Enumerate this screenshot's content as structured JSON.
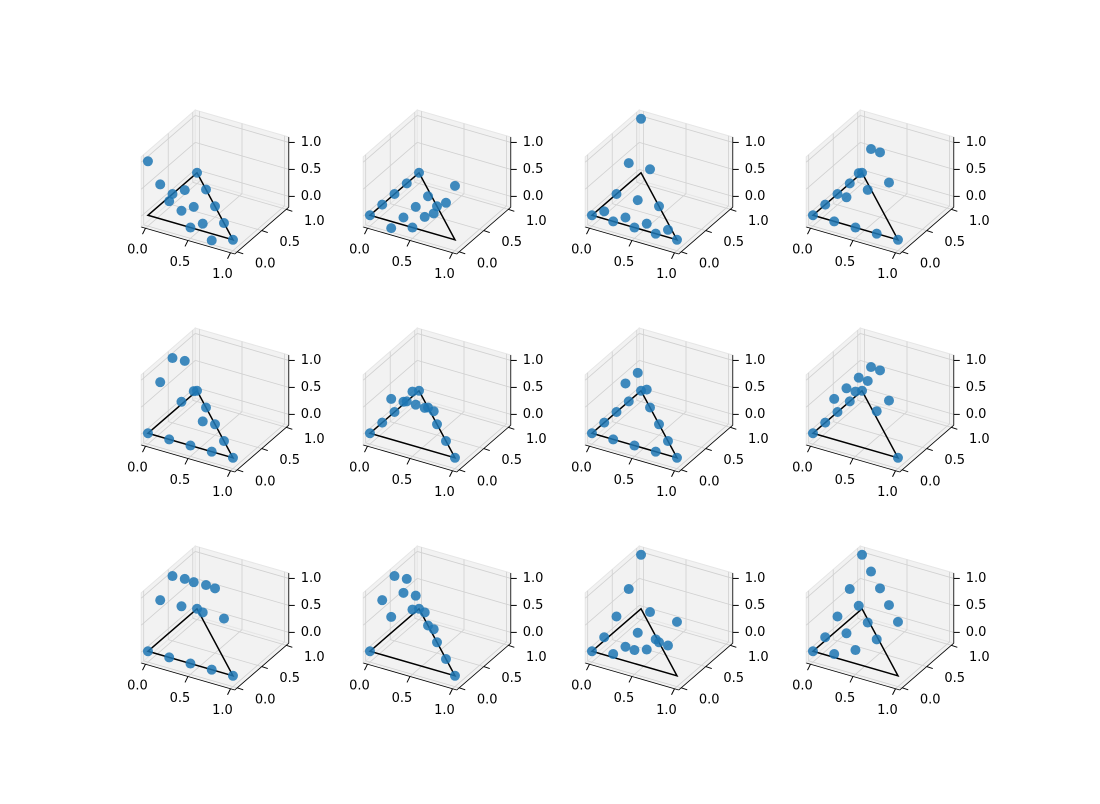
{
  "chart_data": [
    {
      "type": "scatter3d",
      "color": "#1f77b4",
      "x": [
        0,
        0.25,
        0.5,
        0.75,
        1,
        0,
        0.25,
        0.5,
        0.75,
        0,
        0.25,
        0.5,
        0,
        0.25,
        0
      ],
      "y": [
        0,
        0,
        0,
        0,
        0,
        0.25,
        0.25,
        0.25,
        0.25,
        0.5,
        0.5,
        0.5,
        0.75,
        0.75,
        1
      ],
      "z": [
        1,
        0.375,
        0,
        -0.125,
        0,
        0.375,
        0,
        -0.125,
        0,
        0,
        -0.125,
        0,
        -0.125,
        0,
        0
      ],
      "xlim": [
        -0.05,
        1.05
      ],
      "ylim": [
        -0.05,
        1.05
      ],
      "zlim": [
        -0.2,
        1.1
      ],
      "xticks": [
        {
          "value": 0,
          "label": "0.0"
        },
        {
          "value": 0.5,
          "label": "0.5"
        },
        {
          "value": 1,
          "label": "1.0"
        }
      ],
      "yticks": [
        {
          "value": 0,
          "label": "0.0"
        },
        {
          "value": 0.5,
          "label": "0.5"
        },
        {
          "value": 1,
          "label": "1.0"
        }
      ],
      "zticks": [
        {
          "value": 0,
          "label": "0.0"
        },
        {
          "value": 0.5,
          "label": "0.5"
        },
        {
          "value": 1,
          "label": "1.0"
        }
      ]
    },
    {
      "type": "scatter3d",
      "color": "#1f77b4",
      "x": [
        0,
        0.25,
        0.5,
        0.75,
        1,
        0,
        0.25,
        0.5,
        0.75,
        0,
        0.25,
        0.5,
        0,
        0.25,
        0
      ],
      "y": [
        0,
        0,
        0,
        0,
        0,
        0.25,
        0.25,
        0.25,
        0.25,
        0.5,
        0.5,
        0.5,
        0.75,
        0.75,
        1
      ],
      "z": [
        0,
        -0.125,
        0,
        0.375,
        1,
        0,
        -0.125,
        0,
        0.375,
        0,
        -0.125,
        0,
        0,
        -0.125,
        0
      ],
      "xlim": [
        -0.05,
        1.05
      ],
      "ylim": [
        -0.05,
        1.05
      ],
      "zlim": [
        -0.2,
        1.1
      ],
      "xticks": [
        {
          "value": 0,
          "label": "0.0"
        },
        {
          "value": 0.5,
          "label": "0.5"
        },
        {
          "value": 1,
          "label": "1.0"
        }
      ],
      "yticks": [
        {
          "value": 0,
          "label": "0.0"
        },
        {
          "value": 0.5,
          "label": "0.5"
        },
        {
          "value": 1,
          "label": "1.0"
        }
      ],
      "zticks": [
        {
          "value": 0,
          "label": "0.0"
        },
        {
          "value": 0.5,
          "label": "0.5"
        },
        {
          "value": 1,
          "label": "1.0"
        }
      ]
    },
    {
      "type": "scatter3d",
      "color": "#1f77b4",
      "x": [
        0,
        0.25,
        0.5,
        0.75,
        1,
        0,
        0.25,
        0.5,
        0.75,
        0,
        0.25,
        0.5,
        0,
        0.25,
        0
      ],
      "y": [
        0,
        0,
        0,
        0,
        0,
        0.25,
        0.25,
        0.25,
        0.25,
        0.5,
        0.5,
        0.5,
        0.75,
        0.75,
        1
      ],
      "z": [
        0,
        0,
        0,
        0,
        0,
        -0.125,
        -0.125,
        -0.125,
        -0.125,
        0,
        0,
        0,
        0.375,
        0.375,
        1
      ],
      "xlim": [
        -0.05,
        1.05
      ],
      "ylim": [
        -0.05,
        1.05
      ],
      "zlim": [
        -0.2,
        1.1
      ],
      "xticks": [
        {
          "value": 0,
          "label": "0.0"
        },
        {
          "value": 0.5,
          "label": "0.5"
        },
        {
          "value": 1,
          "label": "1.0"
        }
      ],
      "yticks": [
        {
          "value": 0,
          "label": "0.0"
        },
        {
          "value": 0.5,
          "label": "0.5"
        },
        {
          "value": 1,
          "label": "1.0"
        }
      ],
      "zticks": [
        {
          "value": 0,
          "label": "0.0"
        },
        {
          "value": 0.5,
          "label": "0.5"
        },
        {
          "value": 1,
          "label": "1.0"
        }
      ]
    },
    {
      "type": "scatter3d",
      "color": "#1f77b4",
      "x": [
        0,
        0.25,
        0.5,
        0.75,
        1,
        0,
        0.25,
        0.5,
        0.75,
        0,
        0.25,
        0.5,
        0,
        0.25,
        0
      ],
      "y": [
        0,
        0,
        0,
        0,
        0,
        0.25,
        0.25,
        0.25,
        0.25,
        0.5,
        0.5,
        0.5,
        0.75,
        0.75,
        1
      ],
      "z": [
        0,
        0,
        0,
        0,
        0,
        0,
        0.25,
        0.5,
        0.75,
        0,
        0.5,
        1,
        0,
        0.75,
        0
      ],
      "xlim": [
        -0.05,
        1.05
      ],
      "ylim": [
        -0.05,
        1.05
      ],
      "zlim": [
        -0.2,
        1.1
      ],
      "xticks": [
        {
          "value": 0,
          "label": "0.0"
        },
        {
          "value": 0.5,
          "label": "0.5"
        },
        {
          "value": 1,
          "label": "1.0"
        }
      ],
      "yticks": [
        {
          "value": 0,
          "label": "0.0"
        },
        {
          "value": 0.5,
          "label": "0.5"
        },
        {
          "value": 1,
          "label": "1.0"
        }
      ],
      "zticks": [
        {
          "value": 0,
          "label": "0.0"
        },
        {
          "value": 0.5,
          "label": "0.5"
        },
        {
          "value": 1,
          "label": "1.0"
        }
      ]
    },
    {
      "type": "scatter3d",
      "color": "#1f77b4",
      "x": [
        0,
        0.25,
        0.5,
        0.75,
        1,
        0,
        0.25,
        0.5,
        0.75,
        0,
        0.25,
        0.5,
        0,
        0.25,
        0
      ],
      "y": [
        0,
        0,
        0,
        0,
        0,
        0.25,
        0.25,
        0.25,
        0.25,
        0.5,
        0.5,
        0.5,
        0.75,
        0.75,
        1
      ],
      "z": [
        0,
        0,
        0,
        0,
        0,
        0.75,
        0.5,
        0.25,
        0,
        1,
        0.5,
        0,
        0.75,
        0,
        0
      ],
      "xlim": [
        -0.05,
        1.05
      ],
      "ylim": [
        -0.05,
        1.05
      ],
      "zlim": [
        -0.2,
        1.1
      ],
      "xticks": [
        {
          "value": 0,
          "label": "0.0"
        },
        {
          "value": 0.5,
          "label": "0.5"
        },
        {
          "value": 1,
          "label": "1.0"
        }
      ],
      "yticks": [
        {
          "value": 0,
          "label": "0.0"
        },
        {
          "value": 0.5,
          "label": "0.5"
        },
        {
          "value": 1,
          "label": "1.0"
        }
      ],
      "zticks": [
        {
          "value": 0,
          "label": "0.0"
        },
        {
          "value": 0.5,
          "label": "0.5"
        },
        {
          "value": 1,
          "label": "1.0"
        }
      ]
    },
    {
      "type": "scatter3d",
      "color": "#1f77b4",
      "x": [
        0,
        0.25,
        0.5,
        0.75,
        1,
        0,
        0.25,
        0.5,
        0.75,
        0,
        0.25,
        0.5,
        0,
        0.25,
        0
      ],
      "y": [
        0,
        0,
        0,
        0,
        0,
        0.25,
        0.25,
        0.25,
        0.25,
        0.5,
        0.5,
        0.5,
        0.75,
        0.75,
        1
      ],
      "z": [
        0,
        0.75,
        1,
        0.75,
        0,
        0,
        0.5,
        0.5,
        0,
        0,
        0.25,
        0,
        0,
        0,
        0
      ],
      "xlim": [
        -0.05,
        1.05
      ],
      "ylim": [
        -0.05,
        1.05
      ],
      "zlim": [
        -0.2,
        1.1
      ],
      "xticks": [
        {
          "value": 0,
          "label": "0.0"
        },
        {
          "value": 0.5,
          "label": "0.5"
        },
        {
          "value": 1,
          "label": "1.0"
        }
      ],
      "yticks": [
        {
          "value": 0,
          "label": "0.0"
        },
        {
          "value": 0.5,
          "label": "0.5"
        },
        {
          "value": 1,
          "label": "1.0"
        }
      ],
      "zticks": [
        {
          "value": 0,
          "label": "0.0"
        },
        {
          "value": 0.5,
          "label": "0.5"
        },
        {
          "value": 1,
          "label": "1.0"
        }
      ]
    },
    {
      "type": "scatter3d",
      "color": "#1f77b4",
      "x": [
        0,
        0.25,
        0.5,
        0.75,
        1,
        0,
        0.25,
        0.5,
        0.75,
        0,
        0.25,
        0.5,
        0,
        0.25,
        0
      ],
      "y": [
        0,
        0,
        0,
        0,
        0,
        0.25,
        0.25,
        0.25,
        0.25,
        0.5,
        0.5,
        0.5,
        0.75,
        0.75,
        1
      ],
      "z": [
        0,
        0,
        0,
        0,
        0,
        0,
        0.84,
        0.84,
        0,
        0,
        0.84,
        0,
        0,
        0,
        0
      ],
      "xlim": [
        -0.05,
        1.05
      ],
      "ylim": [
        -0.05,
        1.05
      ],
      "zlim": [
        -0.2,
        1.1
      ],
      "xticks": [
        {
          "value": 0,
          "label": "0.0"
        },
        {
          "value": 0.5,
          "label": "0.5"
        },
        {
          "value": 1,
          "label": "1.0"
        }
      ],
      "yticks": [
        {
          "value": 0,
          "label": "0.0"
        },
        {
          "value": 0.5,
          "label": "0.5"
        },
        {
          "value": 1,
          "label": "1.0"
        }
      ],
      "zticks": [
        {
          "value": 0,
          "label": "0.0"
        },
        {
          "value": 0.5,
          "label": "0.5"
        },
        {
          "value": 1,
          "label": "1.0"
        }
      ]
    },
    {
      "type": "scatter3d",
      "color": "#1f77b4",
      "x": [
        0,
        0.25,
        0.5,
        0.75,
        1,
        0,
        0.25,
        0.5,
        0.75,
        0,
        0.25,
        0.5,
        0,
        0.25,
        0
      ],
      "y": [
        0,
        0,
        0,
        0,
        0,
        0.25,
        0.25,
        0.25,
        0.25,
        0.5,
        0.5,
        0.5,
        0.75,
        0.75,
        1
      ],
      "z": [
        0,
        0.75,
        1,
        0.75,
        0,
        0,
        0.75,
        1,
        0.75,
        0,
        0.75,
        1,
        0,
        0.75,
        0
      ],
      "xlim": [
        -0.05,
        1.05
      ],
      "ylim": [
        -0.05,
        1.05
      ],
      "zlim": [
        -0.2,
        1.1
      ],
      "xticks": [
        {
          "value": 0,
          "label": "0.0"
        },
        {
          "value": 0.5,
          "label": "0.5"
        },
        {
          "value": 1,
          "label": "1.0"
        }
      ],
      "yticks": [
        {
          "value": 0,
          "label": "0.0"
        },
        {
          "value": 0.5,
          "label": "0.5"
        },
        {
          "value": 1,
          "label": "1.0"
        }
      ],
      "zticks": [
        {
          "value": 0,
          "label": "0.0"
        },
        {
          "value": 0.5,
          "label": "0.5"
        },
        {
          "value": 1,
          "label": "1.0"
        }
      ]
    },
    {
      "type": "scatter3d",
      "color": "#1f77b4",
      "x": [
        0,
        0.25,
        0.5,
        0.75,
        1,
        0,
        0.25,
        0.5,
        0.75,
        0,
        0.25,
        0.5,
        0,
        0.25,
        0
      ],
      "y": [
        0,
        0,
        0,
        0,
        0,
        0.25,
        0.25,
        0.25,
        0.25,
        0.5,
        0.5,
        0.5,
        0.75,
        0.75,
        1
      ],
      "z": [
        0,
        0,
        0,
        0,
        0,
        0.75,
        0.75,
        0.75,
        0.75,
        1,
        1,
        1,
        0.75,
        0.75,
        0
      ],
      "xlim": [
        -0.05,
        1.05
      ],
      "ylim": [
        -0.05,
        1.05
      ],
      "zlim": [
        -0.2,
        1.1
      ],
      "xticks": [
        {
          "value": 0,
          "label": "0.0"
        },
        {
          "value": 0.5,
          "label": "0.5"
        },
        {
          "value": 1,
          "label": "1.0"
        }
      ],
      "yticks": [
        {
          "value": 0,
          "label": "0.0"
        },
        {
          "value": 0.5,
          "label": "0.5"
        },
        {
          "value": 1,
          "label": "1.0"
        }
      ],
      "zticks": [
        {
          "value": 0,
          "label": "0.0"
        },
        {
          "value": 0.5,
          "label": "0.5"
        },
        {
          "value": 1,
          "label": "1.0"
        }
      ]
    },
    {
      "type": "scatter3d",
      "color": "#1f77b4",
      "x": [
        0,
        0.25,
        0.5,
        0.75,
        1,
        0,
        0.25,
        0.5,
        0.75,
        0,
        0.25,
        0.5,
        0,
        0.25,
        0
      ],
      "y": [
        0,
        0,
        0,
        0,
        0,
        0.25,
        0.25,
        0.25,
        0.25,
        0.5,
        0.5,
        0.5,
        0.75,
        0.75,
        1
      ],
      "z": [
        0,
        0.75,
        1,
        0.75,
        0,
        0.75,
        1,
        0.75,
        0,
        1,
        0.75,
        0,
        0.75,
        0,
        0
      ],
      "xlim": [
        -0.05,
        1.05
      ],
      "ylim": [
        -0.05,
        1.05
      ],
      "zlim": [
        -0.2,
        1.1
      ],
      "xticks": [
        {
          "value": 0,
          "label": "0.0"
        },
        {
          "value": 0.5,
          "label": "0.5"
        },
        {
          "value": 1,
          "label": "1.0"
        }
      ],
      "yticks": [
        {
          "value": 0,
          "label": "0.0"
        },
        {
          "value": 0.5,
          "label": "0.5"
        },
        {
          "value": 1,
          "label": "1.0"
        }
      ],
      "zticks": [
        {
          "value": 0,
          "label": "0.0"
        },
        {
          "value": 0.5,
          "label": "0.5"
        },
        {
          "value": 1,
          "label": "1.0"
        }
      ]
    },
    {
      "type": "scatter3d",
      "color": "#1f77b4",
      "x": [
        0,
        0.25,
        0.5,
        0.75,
        1,
        0,
        0.25,
        0.5,
        0.75,
        0,
        0.25,
        0.5,
        0,
        0.25,
        0
      ],
      "y": [
        0,
        0,
        0,
        0,
        0,
        0.25,
        0.25,
        0.25,
        0.25,
        0.5,
        0.5,
        0.5,
        0.75,
        0.75,
        1
      ],
      "z": [
        0,
        0.0625,
        0.25,
        0.5625,
        1,
        0.0625,
        0,
        0.0625,
        0.25,
        0.25,
        0.0625,
        0,
        0.5625,
        0.25,
        1
      ],
      "xlim": [
        -0.05,
        1.05
      ],
      "ylim": [
        -0.05,
        1.05
      ],
      "zlim": [
        -0.2,
        1.1
      ],
      "xticks": [
        {
          "value": 0,
          "label": "0.0"
        },
        {
          "value": 0.5,
          "label": "0.5"
        },
        {
          "value": 1,
          "label": "1.0"
        }
      ],
      "yticks": [
        {
          "value": 0,
          "label": "0.0"
        },
        {
          "value": 0.5,
          "label": "0.5"
        },
        {
          "value": 1,
          "label": "1.0"
        }
      ],
      "zticks": [
        {
          "value": 0,
          "label": "0.0"
        },
        {
          "value": 0.5,
          "label": "0.5"
        },
        {
          "value": 1,
          "label": "1.0"
        }
      ]
    },
    {
      "type": "scatter3d",
      "color": "#1f77b4",
      "x": [
        0,
        0.25,
        0.5,
        0.75,
        1,
        0,
        0.25,
        0.5,
        0.75,
        0,
        0.25,
        0.5,
        0,
        0.25,
        0
      ],
      "y": [
        0,
        0,
        0,
        0,
        0,
        0.25,
        0.25,
        0.25,
        0.25,
        0.5,
        0.5,
        0.5,
        0.75,
        0.75,
        1
      ],
      "z": [
        0,
        0.0625,
        0.25,
        0.5625,
        1,
        0.0625,
        0.25,
        0.5625,
        1,
        0.25,
        0.5625,
        1,
        0.5625,
        1,
        1
      ],
      "xlim": [
        -0.05,
        1.05
      ],
      "ylim": [
        -0.05,
        1.05
      ],
      "zlim": [
        -0.2,
        1.1
      ],
      "xticks": [
        {
          "value": 0,
          "label": "0.0"
        },
        {
          "value": 0.5,
          "label": "0.5"
        },
        {
          "value": 1,
          "label": "1.0"
        }
      ],
      "yticks": [
        {
          "value": 0,
          "label": "0.0"
        },
        {
          "value": 0.5,
          "label": "0.5"
        },
        {
          "value": 1,
          "label": "1.0"
        }
      ],
      "zticks": [
        {
          "value": 0,
          "label": "0.0"
        },
        {
          "value": 0.5,
          "label": "0.5"
        },
        {
          "value": 1,
          "label": "1.0"
        }
      ]
    }
  ]
}
